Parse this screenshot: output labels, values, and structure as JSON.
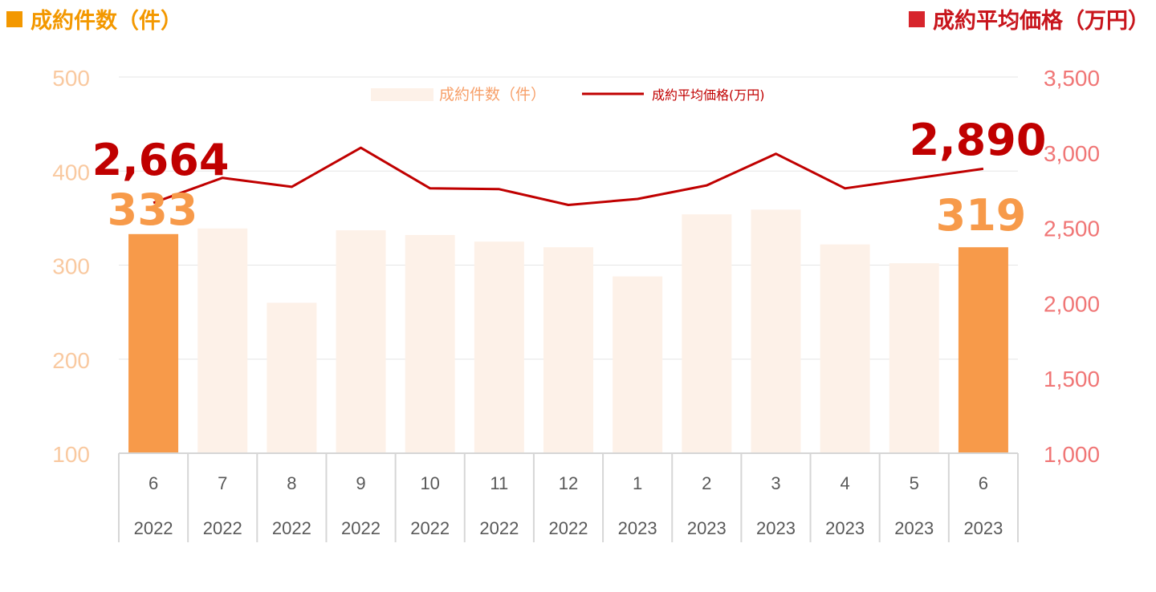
{
  "header": {
    "left_title": "成約件数（件）",
    "right_title": "成約平均価格（万円）"
  },
  "colors": {
    "bar_highlight": "#f79a4a",
    "bar_muted": "#fdf1e8",
    "line": "#c00000",
    "left_axis": "#f9c9a0",
    "right_axis": "#f07676",
    "count_label": "#f79a4a",
    "price_label": "#c00000"
  },
  "chart_data": {
    "type": "bar",
    "legend": {
      "position": "top-center",
      "bar_label": "成約件数（件）",
      "line_label": "成約平均価格(万円)"
    },
    "categories": [
      {
        "month": "6",
        "year": "2022"
      },
      {
        "month": "7",
        "year": "2022"
      },
      {
        "month": "8",
        "year": "2022"
      },
      {
        "month": "9",
        "year": "2022"
      },
      {
        "month": "10",
        "year": "2022"
      },
      {
        "month": "11",
        "year": "2022"
      },
      {
        "month": "12",
        "year": "2022"
      },
      {
        "month": "1",
        "year": "2023"
      },
      {
        "month": "2",
        "year": "2023"
      },
      {
        "month": "3",
        "year": "2023"
      },
      {
        "month": "4",
        "year": "2023"
      },
      {
        "month": "5",
        "year": "2023"
      },
      {
        "month": "6",
        "year": "2023"
      }
    ],
    "series": [
      {
        "name": "成約件数（件）",
        "type": "bar",
        "axis": "left",
        "values": [
          333,
          339,
          260,
          337,
          332,
          325,
          319,
          288,
          354,
          359,
          322,
          302,
          319
        ],
        "highlight": [
          true,
          false,
          false,
          false,
          false,
          false,
          false,
          false,
          false,
          false,
          false,
          false,
          true
        ]
      },
      {
        "name": "成約平均価格(万円)",
        "type": "line",
        "axis": "right",
        "values": [
          2664,
          2830,
          2770,
          3030,
          2760,
          2755,
          2650,
          2690,
          2780,
          2990,
          2760,
          2825,
          2890
        ]
      }
    ],
    "y_left": {
      "min": 100,
      "max": 500,
      "ticks": [
        "100",
        "200",
        "300",
        "400",
        "500"
      ]
    },
    "y_right": {
      "min": 1000,
      "max": 3500,
      "ticks": [
        "1,000",
        "1,500",
        "2,000",
        "2,500",
        "3,000",
        "3,500"
      ]
    },
    "grid": true,
    "callouts": {
      "first_count": "333",
      "first_price": "2,664",
      "last_count": "319",
      "last_price": "2,890"
    }
  }
}
